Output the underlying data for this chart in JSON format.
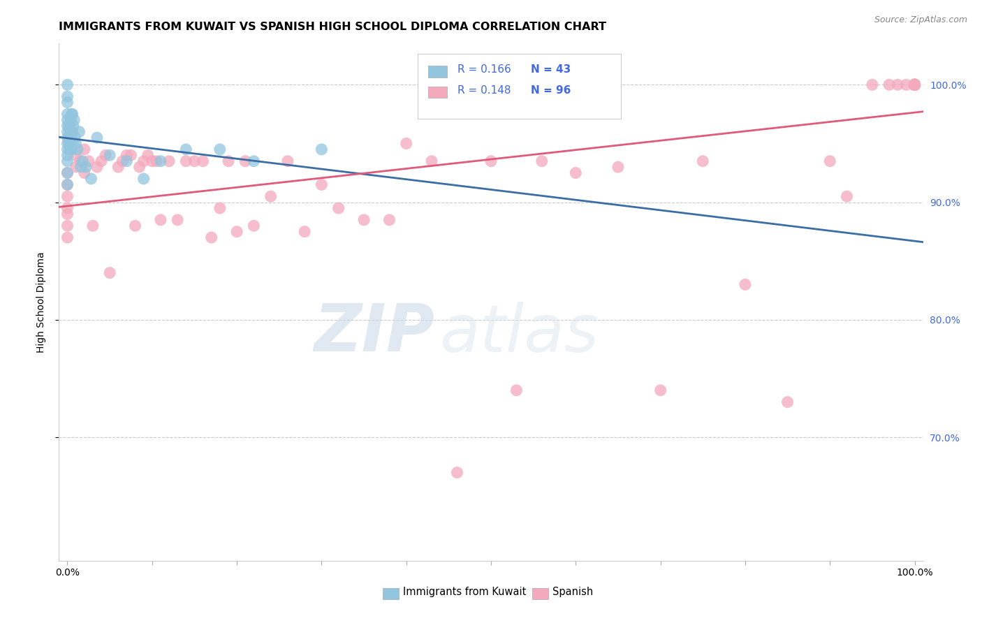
{
  "title": "IMMIGRANTS FROM KUWAIT VS SPANISH HIGH SCHOOL DIPLOMA CORRELATION CHART",
  "source": "Source: ZipAtlas.com",
  "ylabel": "High School Diploma",
  "xlim": [
    -0.01,
    1.01
  ],
  "ylim": [
    0.595,
    1.035
  ],
  "yticks": [
    0.7,
    0.8,
    0.9,
    1.0
  ],
  "ytick_labels": [
    "70.0%",
    "80.0%",
    "90.0%",
    "100.0%"
  ],
  "xtick_positions": [
    0.0,
    0.1,
    0.2,
    0.3,
    0.4,
    0.5,
    0.6,
    0.7,
    0.8,
    0.9,
    1.0
  ],
  "xtick_labels_show": {
    "0.0": "0.0%",
    "1.0": "100.0%"
  },
  "blue_R": 0.166,
  "blue_N": 43,
  "pink_R": 0.148,
  "pink_N": 96,
  "blue_color": "#92c5de",
  "pink_color": "#f4a9bc",
  "blue_line_color": "#3a6ea5",
  "pink_line_color": "#e05a7a",
  "blue_scatter_x": [
    0.0,
    0.0,
    0.0,
    0.0,
    0.0,
    0.0,
    0.0,
    0.0,
    0.0,
    0.0,
    0.0,
    0.0,
    0.0,
    0.0,
    0.002,
    0.002,
    0.003,
    0.003,
    0.004,
    0.004,
    0.005,
    0.005,
    0.006,
    0.006,
    0.007,
    0.008,
    0.009,
    0.01,
    0.012,
    0.014,
    0.016,
    0.018,
    0.022,
    0.028,
    0.035,
    0.05,
    0.07,
    0.09,
    0.11,
    0.14,
    0.18,
    0.22,
    0.3
  ],
  "blue_scatter_y": [
    1.0,
    0.99,
    0.985,
    0.975,
    0.97,
    0.965,
    0.96,
    0.955,
    0.95,
    0.945,
    0.94,
    0.935,
    0.925,
    0.915,
    0.965,
    0.95,
    0.945,
    0.96,
    0.97,
    0.955,
    0.975,
    0.945,
    0.975,
    0.96,
    0.965,
    0.97,
    0.955,
    0.95,
    0.945,
    0.96,
    0.93,
    0.935,
    0.93,
    0.92,
    0.955,
    0.94,
    0.935,
    0.92,
    0.935,
    0.945,
    0.945,
    0.935,
    0.945
  ],
  "pink_scatter_x": [
    0.0,
    0.0,
    0.0,
    0.0,
    0.0,
    0.0,
    0.0,
    0.01,
    0.01,
    0.015,
    0.02,
    0.02,
    0.025,
    0.03,
    0.035,
    0.04,
    0.045,
    0.05,
    0.06,
    0.065,
    0.07,
    0.075,
    0.08,
    0.085,
    0.09,
    0.095,
    0.1,
    0.105,
    0.11,
    0.12,
    0.13,
    0.14,
    0.15,
    0.16,
    0.17,
    0.18,
    0.19,
    0.2,
    0.21,
    0.22,
    0.24,
    0.26,
    0.28,
    0.3,
    0.32,
    0.35,
    0.38,
    0.4,
    0.43,
    0.46,
    0.5,
    0.53,
    0.56,
    0.6,
    0.65,
    0.7,
    0.75,
    0.8,
    0.85,
    0.9,
    0.92,
    0.95,
    0.97,
    0.98,
    0.99,
    1.0,
    1.0,
    1.0,
    1.0,
    1.0,
    1.0,
    1.0,
    1.0,
    1.0,
    1.0,
    1.0,
    1.0,
    1.0,
    1.0,
    1.0,
    1.0,
    1.0,
    1.0,
    1.0,
    1.0,
    1.0,
    1.0,
    1.0,
    1.0,
    1.0,
    1.0,
    1.0,
    1.0,
    1.0,
    1.0,
    1.0
  ],
  "pink_scatter_y": [
    0.925,
    0.915,
    0.905,
    0.895,
    0.89,
    0.88,
    0.87,
    0.94,
    0.93,
    0.935,
    0.945,
    0.925,
    0.935,
    0.88,
    0.93,
    0.935,
    0.94,
    0.84,
    0.93,
    0.935,
    0.94,
    0.94,
    0.88,
    0.93,
    0.935,
    0.94,
    0.935,
    0.935,
    0.885,
    0.935,
    0.885,
    0.935,
    0.935,
    0.935,
    0.87,
    0.895,
    0.935,
    0.875,
    0.935,
    0.88,
    0.905,
    0.935,
    0.875,
    0.915,
    0.895,
    0.885,
    0.885,
    0.95,
    0.935,
    0.67,
    0.935,
    0.74,
    0.935,
    0.925,
    0.93,
    0.74,
    0.935,
    0.83,
    0.73,
    0.935,
    0.905,
    1.0,
    1.0,
    1.0,
    1.0,
    1.0,
    1.0,
    1.0,
    1.0,
    1.0,
    1.0,
    1.0,
    1.0,
    1.0,
    1.0,
    1.0,
    1.0,
    1.0,
    1.0,
    1.0,
    1.0,
    1.0,
    1.0,
    1.0,
    1.0,
    1.0,
    1.0,
    1.0,
    1.0,
    1.0,
    1.0,
    1.0,
    1.0,
    1.0,
    1.0,
    1.0
  ],
  "watermark_zip": "ZIP",
  "watermark_atlas": "atlas",
  "background_color": "#ffffff",
  "legend_label_blue": "Immigrants from Kuwait",
  "legend_label_pink": "Spanish",
  "grid_color": "#cccccc",
  "right_tick_color": "#4169e1",
  "title_fontsize": 11.5,
  "axis_label_fontsize": 10,
  "tick_fontsize": 10,
  "source_fontsize": 9
}
